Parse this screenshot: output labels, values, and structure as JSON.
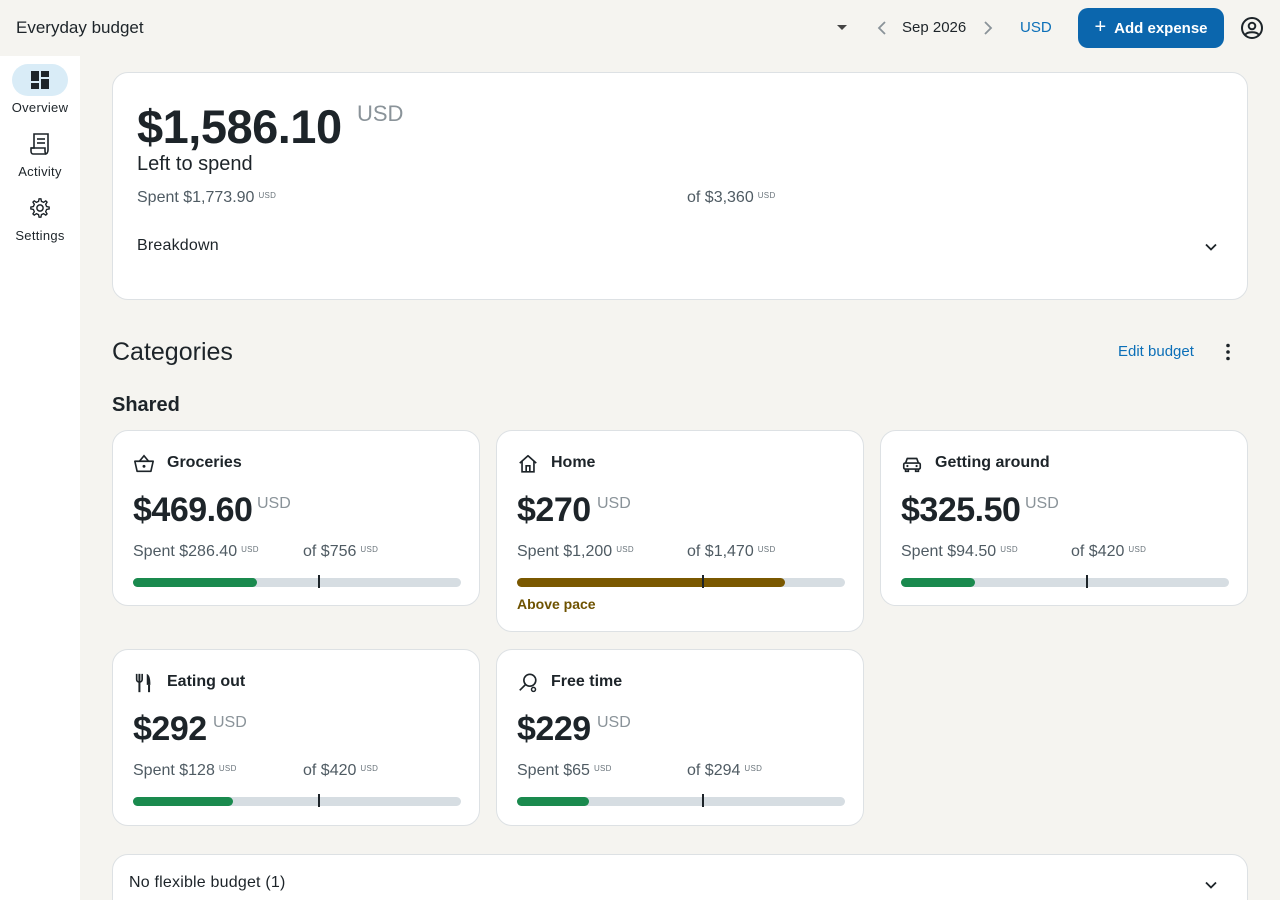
{
  "header": {
    "app_title": "Everyday budget",
    "month": "Sep 2026",
    "currency": "USD",
    "add_expense": "Add expense",
    "add_icon": "+"
  },
  "sidebar": {
    "items": [
      {
        "label": "Overview",
        "icon": "overview-icon",
        "active": true
      },
      {
        "label": "Activity",
        "icon": "activity-icon",
        "active": false
      },
      {
        "label": "Settings",
        "icon": "settings-icon",
        "active": false
      }
    ]
  },
  "summary": {
    "left_amount": "$1,586.10",
    "currency": "USD",
    "left_label": "Left to spend",
    "spent": "Spent $1,773.90",
    "spent_cur": "USD",
    "total": "of $3,360",
    "total_cur": "USD",
    "breakdown": "Breakdown"
  },
  "categories": {
    "title": "Categories",
    "edit_budget": "Edit budget",
    "group": "Shared",
    "items": [
      {
        "name": "Groceries",
        "icon": "basket-icon",
        "left": "$469.60",
        "cur": "USD",
        "spent": "Spent $286.40",
        "budget": "of $756",
        "progress": 0.378,
        "pace": 0.567,
        "status": "",
        "color": "#1a8a4e"
      },
      {
        "name": "Home",
        "icon": "home-icon",
        "left": "$270",
        "cur": "USD",
        "spent": "Spent $1,200",
        "budget": "of $1,470",
        "progress": 0.816,
        "pace": 0.567,
        "status": "Above pace",
        "color": "#7a5800"
      },
      {
        "name": "Getting around",
        "icon": "car-icon",
        "left": "$325.50",
        "cur": "USD",
        "spent": "Spent $94.50",
        "budget": "of $420",
        "progress": 0.225,
        "pace": 0.567,
        "status": "",
        "color": "#1a8a4e"
      },
      {
        "name": "Eating out",
        "icon": "fork-knife-icon",
        "left": "$292",
        "cur": "USD",
        "spent": "Spent $128",
        "budget": "of $420",
        "progress": 0.305,
        "pace": 0.567,
        "status": "",
        "color": "#1a8a4e"
      },
      {
        "name": "Free time",
        "icon": "free-time-icon",
        "left": "$229",
        "cur": "USD",
        "spent": "Spent $65",
        "budget": "of $294",
        "progress": 0.221,
        "pace": 0.567,
        "status": "",
        "color": "#1a8a4e"
      }
    ]
  },
  "flexible": {
    "label": "No flexible budget (1)"
  }
}
